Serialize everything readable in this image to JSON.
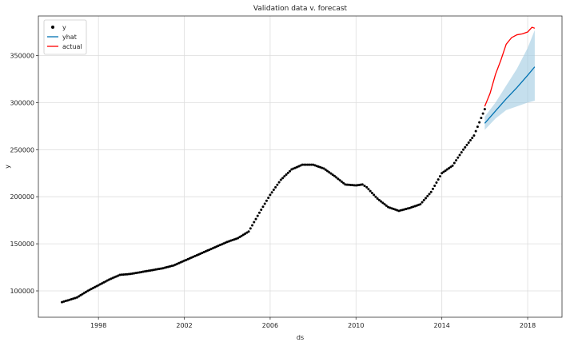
{
  "chart_data": {
    "type": "line",
    "title": "Validation data v. forecast",
    "xlabel": "ds",
    "ylabel": "y",
    "xlim": [
      1995.2,
      2019.6
    ],
    "ylim": [
      72000,
      392000
    ],
    "x_ticks": [
      1998,
      2002,
      2006,
      2010,
      2014,
      2018
    ],
    "y_ticks": [
      100000,
      150000,
      200000,
      250000,
      300000,
      350000
    ],
    "grid": true,
    "legend_position": "top-left",
    "series": [
      {
        "name": "y",
        "kind": "scatter",
        "color": "#000000",
        "x": [
          1996.3,
          1997.0,
          1997.5,
          1998.0,
          1998.5,
          1999.0,
          1999.5,
          2000.0,
          2000.5,
          2001.0,
          2001.5,
          2002.0,
          2002.5,
          2003.0,
          2003.5,
          2004.0,
          2004.5,
          2005.0,
          2005.5,
          2006.0,
          2006.5,
          2007.0,
          2007.5,
          2008.0,
          2008.5,
          2009.0,
          2009.5,
          2010.0,
          2010.3,
          2010.5,
          2011.0,
          2011.5,
          2012.0,
          2012.5,
          2013.0,
          2013.5,
          2014.0,
          2014.5,
          2015.0,
          2015.5,
          2016.0
        ],
        "y": [
          88000,
          93000,
          100000,
          106000,
          112000,
          117000,
          118000,
          120000,
          122000,
          124000,
          127000,
          132000,
          137000,
          142000,
          147000,
          152000,
          156000,
          163000,
          183000,
          202000,
          218000,
          229000,
          234000,
          234000,
          230000,
          222000,
          213000,
          212000,
          213000,
          210000,
          198000,
          189000,
          185000,
          188000,
          192000,
          205000,
          225000,
          233000,
          250000,
          265000,
          293000
        ]
      },
      {
        "name": "yhat",
        "kind": "line",
        "color": "#0072B2",
        "x": [
          2016.0,
          2016.5,
          2017.0,
          2017.5,
          2018.0,
          2018.33
        ],
        "y": [
          278000,
          291000,
          304000,
          316000,
          329000,
          338000
        ]
      },
      {
        "name": "actual",
        "kind": "line",
        "color": "#ff0000",
        "x": [
          2016.0,
          2016.25,
          2016.5,
          2016.75,
          2017.0,
          2017.25,
          2017.5,
          2017.75,
          2018.0,
          2018.2,
          2018.33
        ],
        "y": [
          296000,
          310000,
          330000,
          345000,
          362000,
          369000,
          372000,
          373000,
          375000,
          380000,
          379000
        ]
      }
    ],
    "band": {
      "color": "#9ecae1",
      "x": [
        2016.0,
        2016.5,
        2017.0,
        2017.5,
        2018.0,
        2018.33
      ],
      "lower": [
        271000,
        283000,
        292000,
        296000,
        300000,
        302000
      ],
      "upper": [
        285000,
        300000,
        318000,
        336000,
        358000,
        377000
      ]
    }
  }
}
